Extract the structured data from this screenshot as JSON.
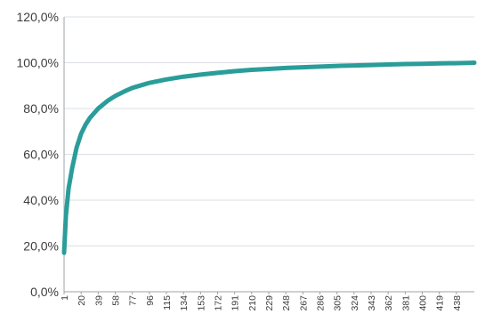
{
  "chart_data": {
    "type": "line",
    "title": "",
    "xlabel": "",
    "ylabel": "",
    "grid": true,
    "legend": "none",
    "x_range": [
      1,
      458
    ],
    "ylim": [
      0,
      120
    ],
    "y_ticks": [
      {
        "value": 0,
        "label": "0,0%"
      },
      {
        "value": 20,
        "label": "20,0%"
      },
      {
        "value": 40,
        "label": "40,0%"
      },
      {
        "value": 60,
        "label": "60,0%"
      },
      {
        "value": 80,
        "label": "80,0%"
      },
      {
        "value": 100,
        "label": "100,0%"
      },
      {
        "value": 120,
        "label": "120,0%"
      }
    ],
    "x_ticks": [
      {
        "value": 1,
        "label": "1"
      },
      {
        "value": 20,
        "label": "20"
      },
      {
        "value": 39,
        "label": "39"
      },
      {
        "value": 58,
        "label": "58"
      },
      {
        "value": 77,
        "label": "77"
      },
      {
        "value": 96,
        "label": "96"
      },
      {
        "value": 115,
        "label": "115"
      },
      {
        "value": 134,
        "label": "134"
      },
      {
        "value": 153,
        "label": "153"
      },
      {
        "value": 172,
        "label": "172"
      },
      {
        "value": 191,
        "label": "191"
      },
      {
        "value": 210,
        "label": "210"
      },
      {
        "value": 229,
        "label": "229"
      },
      {
        "value": 248,
        "label": "248"
      },
      {
        "value": 267,
        "label": "267"
      },
      {
        "value": 286,
        "label": "286"
      },
      {
        "value": 305,
        "label": "305"
      },
      {
        "value": 324,
        "label": "324"
      },
      {
        "value": 343,
        "label": "343"
      },
      {
        "value": 362,
        "label": "362"
      },
      {
        "value": 381,
        "label": "381"
      },
      {
        "value": 400,
        "label": "400"
      },
      {
        "value": 419,
        "label": "419"
      },
      {
        "value": 438,
        "label": "438"
      }
    ],
    "series": [
      {
        "color": "#2a9d9a",
        "x": [
          1,
          3,
          6,
          10,
          15,
          20,
          25,
          30,
          39,
          50,
          58,
          70,
          77,
          90,
          96,
          110,
          115,
          134,
          153,
          172,
          191,
          210,
          229,
          248,
          267,
          286,
          305,
          324,
          343,
          362,
          381,
          400,
          419,
          438,
          450,
          458
        ],
        "values": [
          17,
          33,
          45,
          54,
          63,
          69,
          73,
          76,
          80,
          83.5,
          85.5,
          87.8,
          89,
          90.5,
          91.2,
          92.3,
          92.7,
          93.9,
          94.8,
          95.6,
          96.3,
          96.9,
          97.3,
          97.7,
          98.0,
          98.3,
          98.6,
          98.8,
          99.0,
          99.2,
          99.4,
          99.5,
          99.7,
          99.8,
          99.9,
          100
        ]
      }
    ]
  }
}
